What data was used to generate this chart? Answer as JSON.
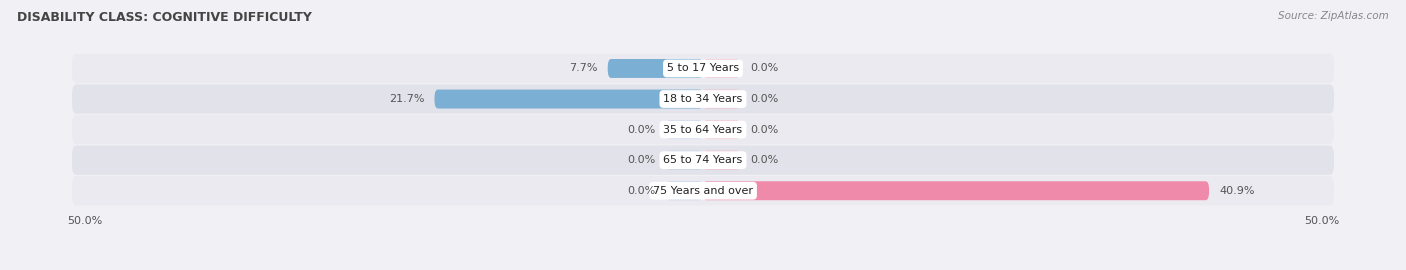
{
  "title": "DISABILITY CLASS: COGNITIVE DIFFICULTY",
  "source_text": "Source: ZipAtlas.com",
  "categories": [
    "5 to 17 Years",
    "18 to 34 Years",
    "35 to 64 Years",
    "65 to 74 Years",
    "75 Years and over"
  ],
  "male_values": [
    7.7,
    21.7,
    0.0,
    0.0,
    0.0
  ],
  "female_values": [
    0.0,
    0.0,
    0.0,
    0.0,
    40.9
  ],
  "male_stub": 3.0,
  "female_stub": 3.0,
  "xlim": 50.0,
  "male_color": "#7bafd4",
  "female_color": "#f08aaa",
  "row_colors": [
    "#eaeaf0",
    "#e2e2ea"
  ],
  "bg_color": "#f0f0f5",
  "title_color": "#444444",
  "value_color": "#555555",
  "label_fontsize": 8,
  "title_fontsize": 9,
  "source_fontsize": 7.5,
  "legend_fontsize": 9
}
